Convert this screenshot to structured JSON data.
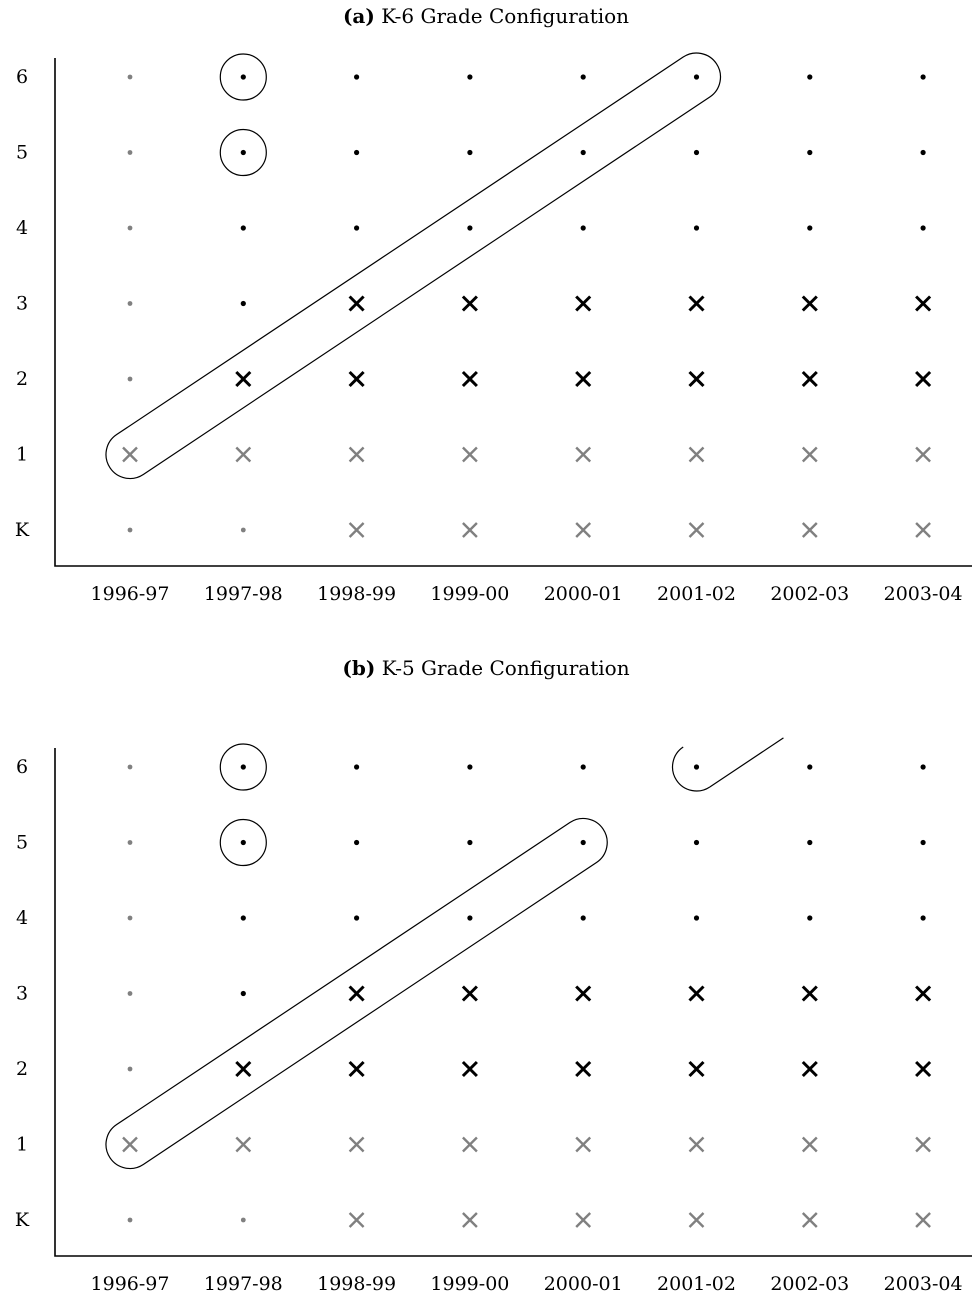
{
  "chart_data": [
    {
      "type": "scatter",
      "panel_label": "(a)",
      "title": "K-6 Grade Configuration",
      "categories": [
        "1996-97",
        "1997-98",
        "1998-99",
        "1999-00",
        "2000-01",
        "2001-02",
        "2002-03",
        "2003-04"
      ],
      "grades": [
        "K",
        "1",
        "2",
        "3",
        "4",
        "5",
        "6"
      ],
      "marker_legend": {
        "dot_black": "black dot",
        "dot_gray": "gray dot",
        "x_black": "black cross",
        "x_gray": "gray cross"
      },
      "cells": [
        [
          "dot_gray",
          "x_gray",
          "dot_gray",
          "dot_gray",
          "dot_gray",
          "dot_gray",
          "dot_gray"
        ],
        [
          "dot_gray",
          "x_gray",
          "x_black",
          "dot_black",
          "dot_black",
          "dot_black",
          "dot_black"
        ],
        [
          "x_gray",
          "x_gray",
          "x_black",
          "x_black",
          "dot_black",
          "dot_black",
          "dot_black"
        ],
        [
          "x_gray",
          "x_gray",
          "x_black",
          "x_black",
          "dot_black",
          "dot_black",
          "dot_black"
        ],
        [
          "x_gray",
          "x_gray",
          "x_black",
          "x_black",
          "dot_black",
          "dot_black",
          "dot_black"
        ],
        [
          "x_gray",
          "x_gray",
          "x_black",
          "x_black",
          "dot_black",
          "dot_black",
          "dot_black"
        ],
        [
          "x_gray",
          "x_gray",
          "x_black",
          "x_black",
          "dot_black",
          "dot_black",
          "dot_black"
        ],
        [
          "x_gray",
          "x_gray",
          "x_black",
          "x_black",
          "dot_black",
          "dot_black",
          "dot_black"
        ]
      ],
      "circles": [
        {
          "year": "1997-98",
          "grade": "6"
        },
        {
          "year": "1997-98",
          "grade": "5"
        }
      ],
      "cohort_band": {
        "from": {
          "year": "1996-97",
          "grade": "1"
        },
        "to": {
          "year": "2001-02",
          "grade": "6"
        }
      },
      "xlabel": "",
      "ylabel": ""
    },
    {
      "type": "scatter",
      "panel_label": "(b)",
      "title": "K-5 Grade Configuration",
      "categories": [
        "1996-97",
        "1997-98",
        "1998-99",
        "1999-00",
        "2000-01",
        "2001-02",
        "2002-03",
        "2003-04"
      ],
      "grades": [
        "K",
        "1",
        "2",
        "3",
        "4",
        "5",
        "6"
      ],
      "marker_legend": {
        "dot_black": "black dot",
        "dot_gray": "gray dot",
        "x_black": "black cross",
        "x_gray": "gray cross"
      },
      "cells": [
        [
          "dot_gray",
          "x_gray",
          "dot_gray",
          "dot_gray",
          "dot_gray",
          "dot_gray",
          "dot_gray"
        ],
        [
          "dot_gray",
          "x_gray",
          "x_black",
          "dot_black",
          "dot_black",
          "dot_black",
          "dot_black"
        ],
        [
          "x_gray",
          "x_gray",
          "x_black",
          "x_black",
          "dot_black",
          "dot_black",
          "dot_black"
        ],
        [
          "x_gray",
          "x_gray",
          "x_black",
          "x_black",
          "dot_black",
          "dot_black",
          "dot_black"
        ],
        [
          "x_gray",
          "x_gray",
          "x_black",
          "x_black",
          "dot_black",
          "dot_black",
          "dot_black"
        ],
        [
          "x_gray",
          "x_gray",
          "x_black",
          "x_black",
          "dot_black",
          "dot_black",
          "dot_black"
        ],
        [
          "x_gray",
          "x_gray",
          "x_black",
          "x_black",
          "dot_black",
          "dot_black",
          "dot_black"
        ],
        [
          "x_gray",
          "x_gray",
          "x_black",
          "x_black",
          "dot_black",
          "dot_black",
          "dot_black"
        ]
      ],
      "circles": [
        {
          "year": "1997-98",
          "grade": "6"
        },
        {
          "year": "1997-98",
          "grade": "5"
        }
      ],
      "cohort_band": {
        "from": {
          "year": "1996-97",
          "grade": "1"
        },
        "to": {
          "year": "2000-01",
          "grade": "5"
        }
      },
      "partial_band": {
        "start": {
          "year": "2001-02",
          "grade": "6"
        },
        "direction": "up-right",
        "extends_years": 0.65
      },
      "xlabel": "",
      "ylabel": ""
    }
  ],
  "colors": {
    "black": "#000000",
    "gray": "#808080"
  }
}
